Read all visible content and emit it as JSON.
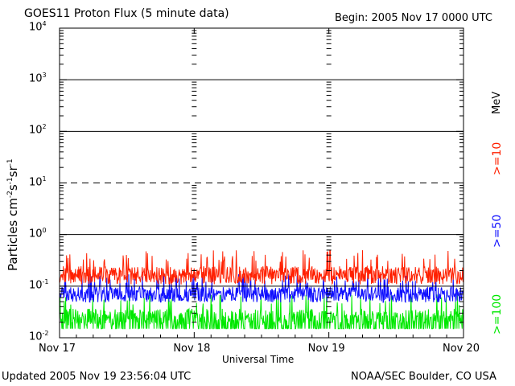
{
  "chart_data": {
    "type": "line",
    "title": "GOES11 Proton Flux (5 minute data)",
    "begin_label": "Begin: 2005 Nov 17 0000 UTC",
    "xlabel": "Universal Time",
    "ylabel_main": "Particles cm",
    "ylabel_sup1": "-2",
    "ylabel_mid1": "s",
    "ylabel_sup2": "-1",
    "ylabel_mid2": "sr",
    "ylabel_sup3": "-1",
    "x_ticks": [
      "Nov 17",
      "Nov 18",
      "Nov 19",
      "Nov 20"
    ],
    "y_scale": "log",
    "ylim": [
      0.01,
      10000
    ],
    "y_ticks": [
      {
        "base": "10",
        "exp": "-2"
      },
      {
        "base": "10",
        "exp": "-1"
      },
      {
        "base": "10",
        "exp": "0"
      },
      {
        "base": "10",
        "exp": "1"
      },
      {
        "base": "10",
        "exp": "2"
      },
      {
        "base": "10",
        "exp": "3"
      },
      {
        "base": "10",
        "exp": "4"
      }
    ],
    "threshold_lines": [
      {
        "value": 0.1,
        "style": "solid"
      },
      {
        "value": 1,
        "style": "solid"
      },
      {
        "value": 10,
        "style": "dashed"
      },
      {
        "value": 100,
        "style": "solid"
      },
      {
        "value": 1000,
        "style": "solid"
      }
    ],
    "series": [
      {
        "name": ">=10",
        "color": "#ff2000",
        "baseline": 0.15,
        "peak": 0.5
      },
      {
        "name": ">=50",
        "color": "#1010ff",
        "baseline": 0.07,
        "peak": 0.18
      },
      {
        "name": ">=100",
        "color": "#00e800",
        "baseline": 0.025,
        "peak": 0.07
      }
    ],
    "legend_unit": "MeV"
  },
  "footer": {
    "updated": "Updated 2005 Nov 19 23:56:04 UTC",
    "credit": "NOAA/SEC Boulder, CO USA"
  },
  "colors": {
    "axis": "#000000",
    "background": "#ffffff"
  }
}
